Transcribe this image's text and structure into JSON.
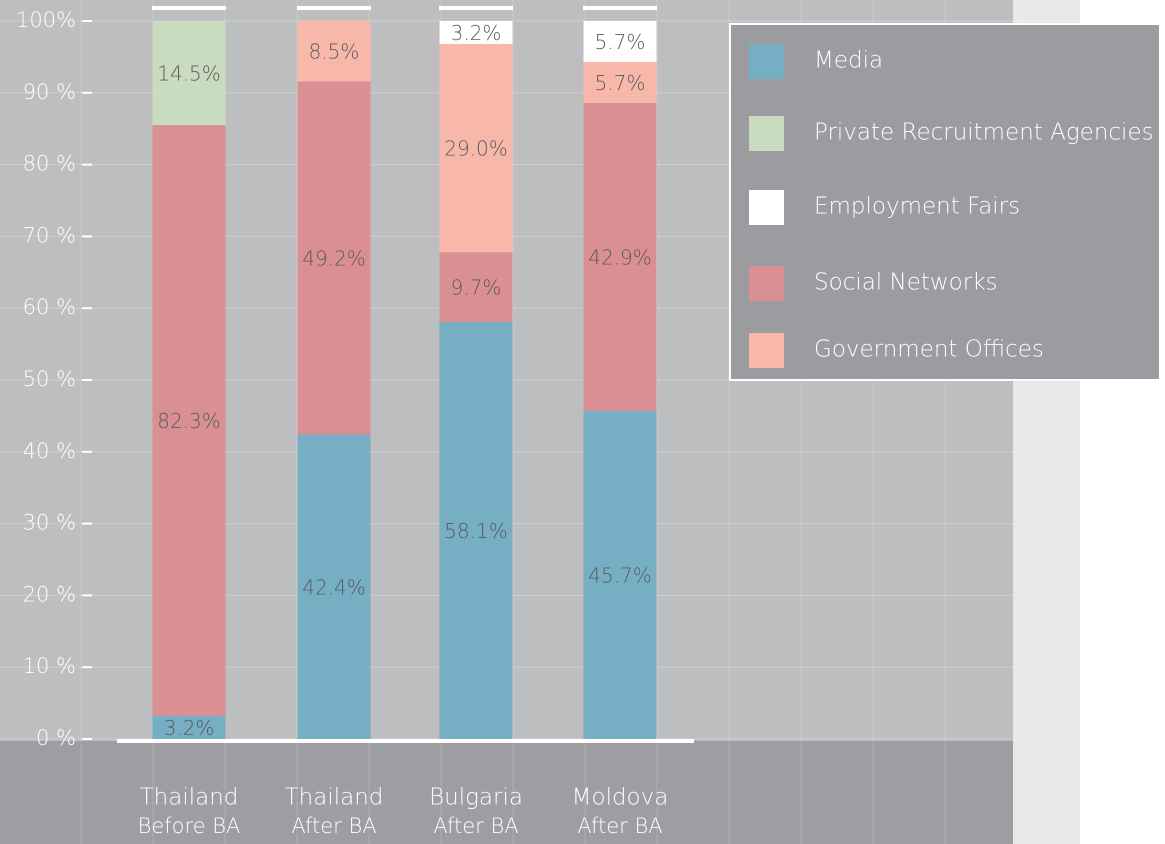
{
  "chart_data": {
    "type": "stacked_bar",
    "categories": [
      [
        "Thailand",
        "Before BA"
      ],
      [
        "Thailand",
        "After BA"
      ],
      [
        "Bulgaria",
        "After BA"
      ],
      [
        "Moldova",
        "After BA"
      ]
    ],
    "series": [
      {
        "name": "Media",
        "color": "#76afc4",
        "values": [
          3.2,
          42.4,
          58.1,
          45.7
        ],
        "value_labels": [
          "3.2%",
          "42.4%",
          "58.1%",
          "45.7%"
        ]
      },
      {
        "name": "Private Recruitment Agencies",
        "color": "#c9dcc0",
        "values": [
          14.5,
          null,
          null,
          null
        ],
        "value_labels": [
          "14.5%",
          null,
          null,
          null
        ]
      },
      {
        "name": "Employment Fairs",
        "color": "#ffffff",
        "values": [
          null,
          null,
          3.2,
          5.7
        ],
        "value_labels": [
          null,
          null,
          "3.2%",
          "5.7%"
        ]
      },
      {
        "name": "Social Networks",
        "color": "#da8f93",
        "values": [
          82.3,
          49.2,
          9.7,
          42.9
        ],
        "value_labels": [
          "82.3%",
          "49.2%",
          "9.7%",
          "42.9%"
        ]
      },
      {
        "name": "Government Offices",
        "color": "#f7b8aa",
        "values": [
          null,
          8.5,
          29.0,
          5.7
        ],
        "value_labels": [
          null,
          "8.5%",
          "29.0%",
          "5.7%"
        ]
      }
    ],
    "ylim": [
      0,
      100
    ],
    "yticks": [
      {
        "value": 0,
        "label": "0 %"
      },
      {
        "value": 10,
        "label": "10 %"
      },
      {
        "value": 20,
        "label": "20 %"
      },
      {
        "value": 30,
        "label": "30 %"
      },
      {
        "value": 40,
        "label": "40 %"
      },
      {
        "value": 50,
        "label": "50 %"
      },
      {
        "value": 60,
        "label": "60 %"
      },
      {
        "value": 70,
        "label": "70 %"
      },
      {
        "value": 80,
        "label": "80 %"
      },
      {
        "value": 90,
        "label": "90 %"
      },
      {
        "value": 100,
        "label": "100%"
      }
    ],
    "grid": true
  }
}
